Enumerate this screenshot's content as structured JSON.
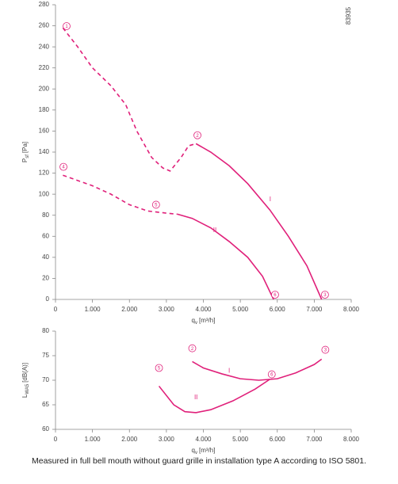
{
  "chart_data": [
    {
      "type": "line",
      "y_label": {
        "main": "P",
        "sub": "sf",
        "unit": "[Pa]"
      },
      "x_label": {
        "main": "q",
        "sub": "v",
        "unit": "[m³/h]"
      },
      "code": "83935",
      "color": "#e0207a",
      "xlim": [
        0,
        8000
      ],
      "xticks": [
        0,
        {
          "value": 1000,
          "label": "1.000"
        },
        {
          "value": 2000,
          "label": "2.000"
        },
        {
          "value": 3000,
          "label": "3.000"
        },
        {
          "value": 4000,
          "label": "4.000"
        },
        {
          "value": 5000,
          "label": "5.000"
        },
        {
          "value": 6000,
          "label": "6.000"
        },
        {
          "value": 7000,
          "label": "7.000"
        },
        {
          "value": 8000,
          "label": "8.000"
        }
      ],
      "ylim": [
        0,
        280
      ],
      "yticks": [
        0,
        20,
        40,
        60,
        80,
        100,
        120,
        140,
        160,
        180,
        200,
        220,
        240,
        260,
        280
      ],
      "grid": false,
      "series": [
        {
          "name": "I",
          "name_x": 5810,
          "name_y": 95,
          "segments": [
            {
              "style": "dashed",
              "x": [
                200,
                600,
                1000,
                1500,
                1900,
                2200,
                2600,
                2900,
                3100,
                3400,
                3600,
                3800
              ],
              "values": [
                258,
                240,
                220,
                203,
                185,
                160,
                135,
                125,
                122,
                135,
                146,
                148
              ]
            },
            {
              "style": "solid",
              "x": [
                3800,
                4200,
                4700,
                5200,
                5800,
                6300,
                6800,
                7200
              ],
              "values": [
                148,
                140,
                127,
                110,
                85,
                60,
                32,
                0
              ]
            }
          ]
        },
        {
          "name": "II",
          "name_x": 4310,
          "name_y": 65.5,
          "segments": [
            {
              "style": "dashed",
              "x": [
                200,
                600,
                1000,
                1500,
                2000,
                2500,
                3000,
                3300
              ],
              "values": [
                118,
                113,
                108,
                100,
                90,
                84,
                82,
                81
              ]
            },
            {
              "style": "solid",
              "x": [
                3300,
                3700,
                4200,
                4700,
                5200,
                5600,
                5900
              ],
              "values": [
                81,
                77,
                68,
                55,
                40,
                22,
                0
              ]
            }
          ]
        }
      ],
      "annotations": [
        {
          "text": "1",
          "x": 300,
          "y": 259.7
        },
        {
          "text": "2",
          "x": 3840,
          "y": 156
        },
        {
          "text": "3",
          "x": 7290,
          "y": 4.5
        },
        {
          "text": "4",
          "x": 215,
          "y": 126
        },
        {
          "text": "5",
          "x": 2720,
          "y": 90
        },
        {
          "text": "6",
          "x": 5940,
          "y": 4.5
        }
      ]
    },
    {
      "type": "line",
      "y_label": {
        "main": "L",
        "sub": "WA5",
        "unit": "[dB(A)]"
      },
      "x_label": {
        "main": "q",
        "sub": "v",
        "unit": "[m³/h]"
      },
      "color": "#e0207a",
      "xlim": [
        0,
        8000
      ],
      "xticks": [
        0,
        {
          "value": 1000,
          "label": "1.000"
        },
        {
          "value": 2000,
          "label": "2.000"
        },
        {
          "value": 3000,
          "label": "3.000"
        },
        {
          "value": 4000,
          "label": "4.000"
        },
        {
          "value": 5000,
          "label": "5.000"
        },
        {
          "value": 6000,
          "label": "6.000"
        },
        {
          "value": 7000,
          "label": "7.000"
        },
        {
          "value": 8000,
          "label": "8.000"
        }
      ],
      "ylim": [
        60,
        80
      ],
      "yticks": [
        60,
        65,
        70,
        75,
        80
      ],
      "grid": false,
      "series": [
        {
          "name": "I",
          "name_x": 4700,
          "name_y": 71.9,
          "segments": [
            {
              "style": "solid",
              "x": [
                3700,
                4000,
                4500,
                5000,
                5500,
                6000,
                6500,
                7000,
                7200
              ],
              "values": [
                73.8,
                72.5,
                71.3,
                70.3,
                70,
                70.3,
                71.5,
                73.2,
                74.3
              ]
            }
          ]
        },
        {
          "name": "II",
          "name_x": 3800,
          "name_y": 66.5,
          "segments": [
            {
              "style": "solid",
              "x": [
                2800,
                3200,
                3500,
                3800,
                4200,
                4800,
                5400,
                5800
              ],
              "values": [
                68.8,
                65,
                63.6,
                63.4,
                64,
                65.8,
                68.2,
                70.2
              ]
            }
          ]
        }
      ],
      "annotations": [
        {
          "text": "2",
          "x": 3700,
          "y": 76.5
        },
        {
          "text": "3",
          "x": 7300,
          "y": 76.2
        },
        {
          "text": "5",
          "x": 2800,
          "y": 72.5
        },
        {
          "text": "6",
          "x": 5850,
          "y": 71.2
        }
      ]
    }
  ],
  "footer": "Measured in full bell mouth without guard grille in installation type A according to ISO 5801."
}
